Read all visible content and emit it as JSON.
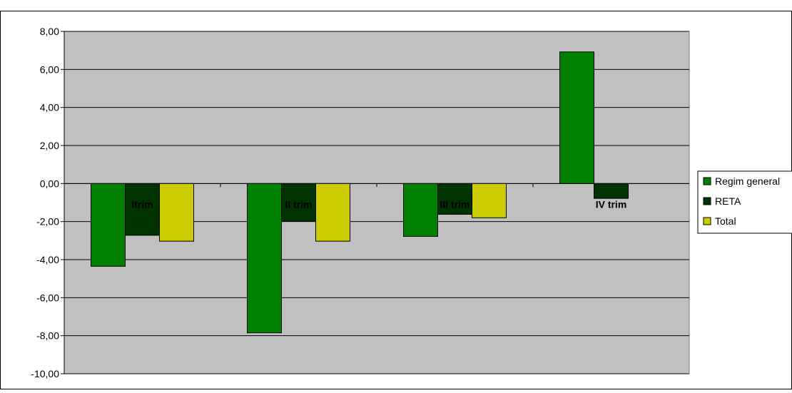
{
  "chart_data": {
    "type": "bar",
    "categories": [
      "Itrim",
      "II trim",
      "III trim",
      "IV trim"
    ],
    "series": [
      {
        "name": "Regim general",
        "color": "#008000",
        "values": [
          -4.35,
          -7.85,
          -2.78,
          6.92
        ]
      },
      {
        "name": "RETA",
        "color": "#003300",
        "values": [
          -2.72,
          -1.98,
          -1.62,
          -0.78
        ]
      },
      {
        "name": "Total",
        "color": "#CCCC00",
        "values": [
          -3.03,
          -3.03,
          -1.8,
          null
        ]
      }
    ],
    "ylim": [
      -10,
      8
    ],
    "yticks": [
      "8,00",
      "6,00",
      "4,00",
      "2,00",
      "0,00",
      "-2,00",
      "-4,00",
      "-6,00",
      "-8,00",
      "-10,00"
    ],
    "grid": true,
    "legend_position": "right",
    "plot_background": "#C0C0C0"
  }
}
